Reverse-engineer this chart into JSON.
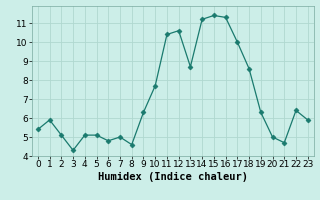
{
  "x": [
    0,
    1,
    2,
    3,
    4,
    5,
    6,
    7,
    8,
    9,
    10,
    11,
    12,
    13,
    14,
    15,
    16,
    17,
    18,
    19,
    20,
    21,
    22,
    23
  ],
  "y": [
    5.4,
    5.9,
    5.1,
    4.3,
    5.1,
    5.1,
    4.8,
    5.0,
    4.6,
    6.3,
    7.7,
    10.4,
    10.6,
    8.7,
    11.2,
    11.4,
    11.3,
    10.0,
    8.6,
    6.3,
    5.0,
    4.7,
    6.4,
    5.9
  ],
  "line_color": "#1a7a6e",
  "marker": "D",
  "marker_size": 2.5,
  "bg_color": "#cceee8",
  "grid_color": "#b0d8d0",
  "xlabel": "Humidex (Indice chaleur)",
  "xlabel_fontsize": 7.5,
  "tick_fontsize": 6.5,
  "xlim": [
    -0.5,
    23.5
  ],
  "ylim": [
    4.0,
    11.9
  ],
  "yticks": [
    4,
    5,
    6,
    7,
    8,
    9,
    10,
    11
  ],
  "xticks": [
    0,
    1,
    2,
    3,
    4,
    5,
    6,
    7,
    8,
    9,
    10,
    11,
    12,
    13,
    14,
    15,
    16,
    17,
    18,
    19,
    20,
    21,
    22,
    23
  ]
}
